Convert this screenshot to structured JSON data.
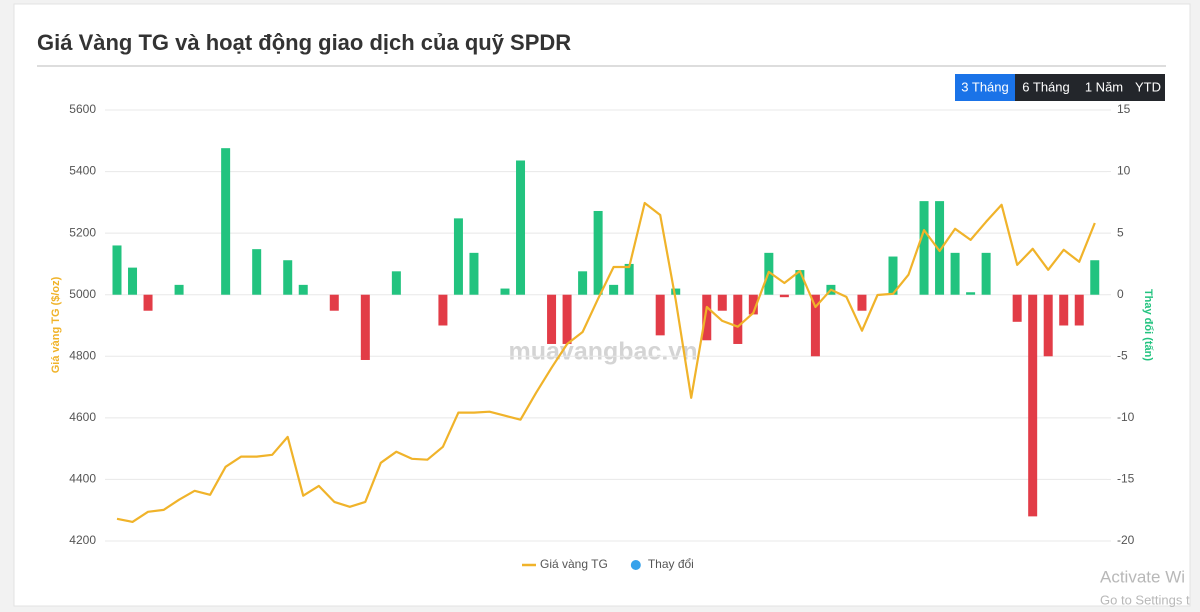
{
  "chart_data": {
    "type": "combo",
    "title": "Giá Vàng TG và hoạt động giao dịch của quỹ SPDR",
    "y_label": "Giá vàng TG ($/oz)",
    "y2_label": "Thay đổi (tấn)",
    "categories": [
      null,
      null,
      null,
      null,
      null,
      null,
      null,
      null,
      null,
      null,
      null,
      null,
      null,
      null,
      null,
      null,
      null,
      null,
      null,
      null,
      null,
      null,
      null,
      null,
      null,
      null,
      null,
      null,
      null,
      null,
      null,
      null,
      null,
      null,
      null,
      null,
      null,
      null,
      null,
      null,
      null,
      null,
      null,
      null,
      null,
      null,
      null,
      null,
      null,
      null,
      null,
      null,
      null,
      null,
      null,
      null,
      null,
      null,
      null,
      null,
      null,
      null,
      null,
      null
    ],
    "ylim": [
      4200,
      5600
    ],
    "yticks": [
      4200,
      4400,
      4600,
      4800,
      5000,
      5200,
      5400,
      5600
    ],
    "y2lim": [
      -20,
      15
    ],
    "y2ticks": [
      -20,
      -15,
      -10,
      -5,
      0,
      5,
      10,
      15
    ],
    "grid": true,
    "legend": "bottom",
    "series": [
      {
        "name": "Giá vàng TG",
        "type": "line",
        "color": "#f0b32a",
        "values": [
          4272,
          4262,
          4295,
          4301,
          4334,
          4363,
          4350,
          4441,
          4474,
          4474,
          4480,
          4538,
          4347,
          4379,
          4327,
          4311,
          4327,
          4454,
          4490,
          4467,
          4464,
          4506,
          4617,
          4617,
          4620,
          4607,
          4594,
          4681,
          4763,
          4840,
          4879,
          4987,
          5090,
          5090,
          5298,
          5259,
          4983,
          4665,
          4960,
          4915,
          4896,
          4941,
          5074,
          5038,
          5077,
          4960,
          5016,
          4993,
          4883,
          4999,
          5003,
          5065,
          5210,
          5142,
          5214,
          5178,
          5237,
          5292,
          5097,
          5149,
          5081,
          5146,
          5107,
          5233
        ]
      },
      {
        "name": "Thay đổi",
        "type": "bar",
        "axis": "y2",
        "color": "#36a2eb",
        "up_color": "#22c37f",
        "down_color": "#e23c47",
        "values": [
          4.0,
          2.2,
          -1.3,
          0,
          0.8,
          0,
          0,
          11.9,
          0,
          3.7,
          0,
          2.8,
          0.8,
          0,
          -1.3,
          0,
          -5.3,
          0,
          1.9,
          0,
          0,
          -2.5,
          6.2,
          3.4,
          0,
          0.5,
          10.9,
          0,
          -4.0,
          -4.0,
          1.9,
          6.8,
          0.8,
          2.5,
          0,
          -3.3,
          0.5,
          0,
          -3.7,
          -1.3,
          -4.0,
          -1.6,
          3.4,
          -0.2,
          2.0,
          -5.0,
          0.8,
          0,
          -1.3,
          0,
          3.1,
          0,
          7.6,
          7.6,
          3.4,
          0.2,
          3.4,
          0,
          -2.2,
          -18.0,
          -5.0,
          -2.5,
          -2.5,
          2.8
        ]
      }
    ]
  },
  "ui": {
    "buttons": [
      "3 Tháng",
      "6 Tháng",
      "1 Năm",
      "YTD"
    ],
    "active": 0
  },
  "watermark": "muavangbac.vn",
  "overlay": {
    "line1": "Activate Wi",
    "line2": "Go to Settings t"
  }
}
